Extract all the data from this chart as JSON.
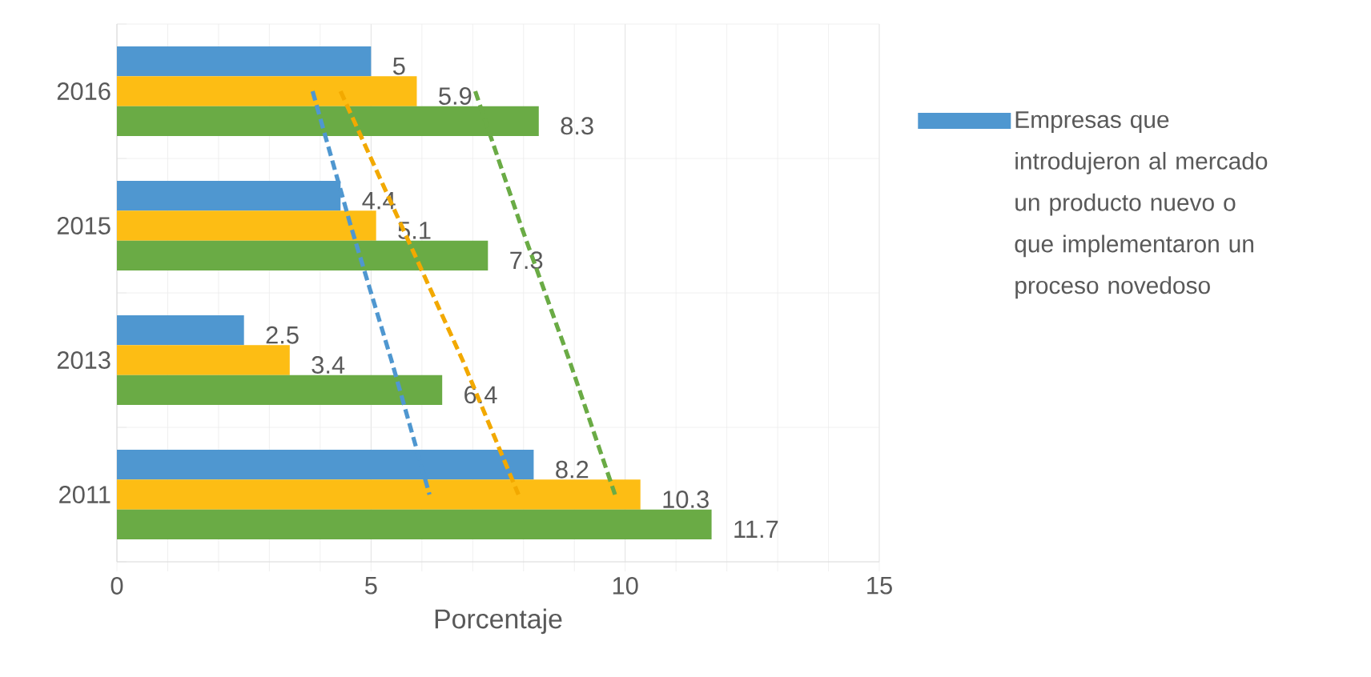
{
  "chart_data": {
    "type": "bar",
    "orientation": "horizontal",
    "xlabel": "Porcentaje",
    "categories": [
      "2016",
      "2015",
      "2013",
      "2011"
    ],
    "series": [
      {
        "name": "Empresas que introdujeron al mercado un producto nuevo o que implementaron un proceso novedoso",
        "color": "#4f97d0",
        "values": [
          5,
          4.4,
          2.5,
          8.2
        ],
        "value_labels": [
          "5",
          "4.4",
          "2.5",
          "8.2"
        ]
      },
      {
        "color": "#fdbd14",
        "values": [
          5.9,
          5.1,
          3.4,
          10.3
        ],
        "value_labels": [
          "5.9",
          "5.1",
          "3.4",
          "10.3"
        ]
      },
      {
        "color": "#6aab45",
        "values": [
          8.3,
          7.3,
          6.4,
          11.7
        ],
        "value_labels": [
          "8.3",
          "7.3",
          "6.4",
          "11.7"
        ]
      },
      {
        "type": "line",
        "line_style": "dashed",
        "color": "#4f97d0",
        "values": [
          3.85,
          4.6,
          5.4,
          6.15
        ]
      },
      {
        "type": "line",
        "line_style": "dashed",
        "color": "#f2a900",
        "values": [
          4.4,
          5.6,
          6.8,
          7.9
        ]
      },
      {
        "type": "line",
        "line_style": "dashed",
        "color": "#6aab45",
        "values": [
          7.05,
          7.95,
          8.9,
          9.8
        ]
      }
    ],
    "xlim": [
      0,
      15
    ],
    "xticks": [
      0,
      5,
      10,
      15
    ],
    "grid": true,
    "legend": "right"
  }
}
